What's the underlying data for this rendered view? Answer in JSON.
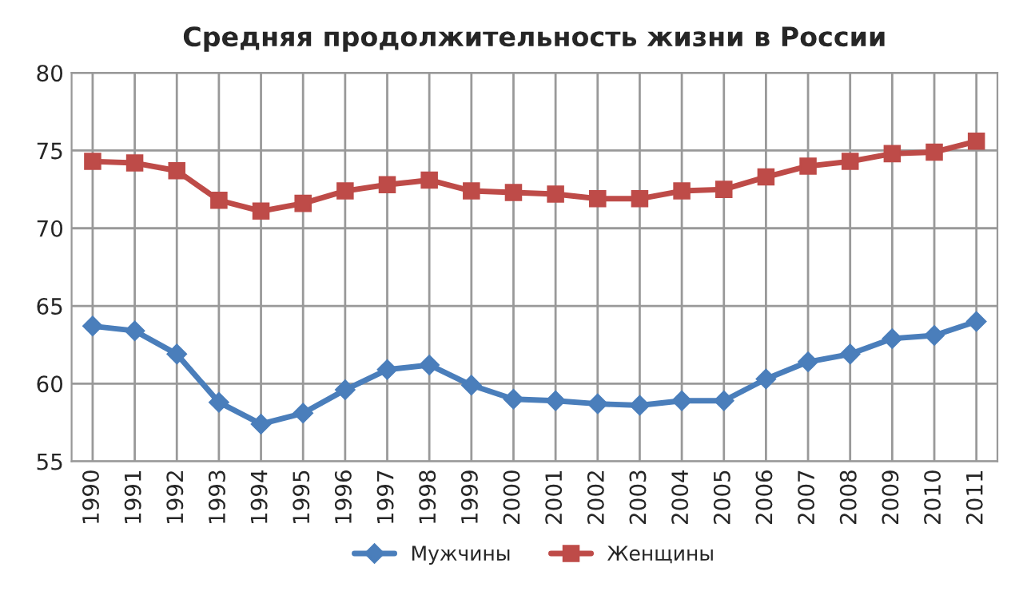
{
  "chart_data": {
    "type": "line",
    "title": "Средняя продолжительность жизни в России",
    "categories": [
      "1990",
      "1991",
      "1992",
      "1993",
      "1994",
      "1995",
      "1996",
      "1997",
      "1998",
      "1999",
      "2000",
      "2001",
      "2002",
      "2003",
      "2004",
      "2005",
      "2006",
      "2007",
      "2008",
      "2009",
      "2010",
      "2011"
    ],
    "series": [
      {
        "name": "Мужчины",
        "color": "#4a7ebb",
        "marker": "diamond",
        "values": [
          63.7,
          63.4,
          61.9,
          58.8,
          57.4,
          58.1,
          59.6,
          60.9,
          61.2,
          59.9,
          59.0,
          58.9,
          58.7,
          58.6,
          58.9,
          58.9,
          60.3,
          61.4,
          61.9,
          62.9,
          63.1,
          64.0
        ]
      },
      {
        "name": "Женщины",
        "color": "#be4b48",
        "marker": "square",
        "values": [
          74.3,
          74.2,
          73.7,
          71.8,
          71.1,
          71.6,
          72.4,
          72.8,
          73.1,
          72.4,
          72.3,
          72.2,
          71.9,
          71.9,
          72.4,
          72.5,
          73.3,
          74.0,
          74.3,
          74.8,
          74.9,
          75.6
        ]
      }
    ],
    "ylim": [
      55,
      80
    ],
    "yticks": [
      55,
      60,
      65,
      70,
      75,
      80
    ],
    "grid": true,
    "legend": "bottom"
  }
}
